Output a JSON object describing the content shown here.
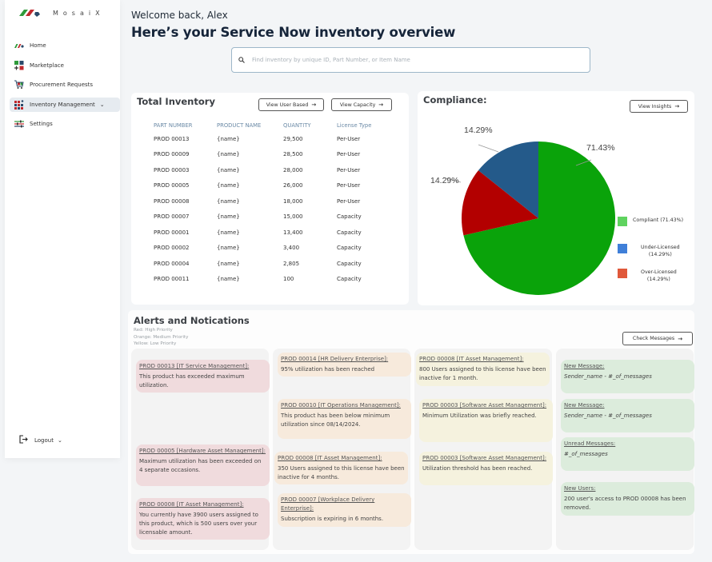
{
  "app": {
    "name": "MosaiX"
  },
  "sidebar": {
    "items": [
      {
        "label": "Home",
        "icon": "home-icon",
        "active": false
      },
      {
        "label": "Marketplace",
        "icon": "marketplace-icon",
        "active": false
      },
      {
        "label": "Procurement Requests",
        "icon": "procurement-icon",
        "active": false
      },
      {
        "label": "Inventory Management",
        "icon": "inventory-icon",
        "active": true,
        "expandable": true
      },
      {
        "label": "Settings",
        "icon": "settings-sliders-icon",
        "active": false
      }
    ],
    "logout": {
      "label": "Logout",
      "icon": "logout-icon"
    }
  },
  "header": {
    "welcome": "Welcome back, Alex",
    "title": "Here’s your Service Now inventory overview"
  },
  "search": {
    "placeholder": "Find inventory by unique ID, Part Number, or Item Name",
    "value": ""
  },
  "inventory": {
    "title": "Total Inventory",
    "buttons": {
      "user_based": "View User Based",
      "capacity": "View Capacity"
    },
    "columns": [
      "PART NUMBER",
      "PRODUCT NAME",
      "QUANTITY",
      "License Type"
    ],
    "rows": [
      [
        "PROD 00013",
        "{name}",
        "29,500",
        "Per-User"
      ],
      [
        "PROD 00009",
        "{name}",
        "28,500",
        "Per-User"
      ],
      [
        "PROD 00003",
        "{name}",
        "28,000",
        "Per-User"
      ],
      [
        "PROD 00005",
        "{name}",
        "26,000",
        "Per-User"
      ],
      [
        "PROD 00008",
        "{name}",
        "18,000",
        "Per-User"
      ],
      [
        "PROD 00007",
        "{name}",
        "15,000",
        "Capacity"
      ],
      [
        "PROD 00001",
        "{name}",
        "13,400",
        "Capacity"
      ],
      [
        "PROD 00002",
        "{name}",
        "3,400",
        "Capacity"
      ],
      [
        "PROD 00004",
        "{name}",
        "2,805",
        "Capacity"
      ],
      [
        "PROD 00011",
        "{name}",
        "100",
        "Capacity"
      ]
    ]
  },
  "compliance": {
    "title": "Compliance:",
    "button": "View Insights"
  },
  "chart_data": {
    "type": "pie",
    "title": "Compliance:",
    "slices": [
      {
        "name": "Compliant",
        "value": 71.43,
        "label": "71.43%",
        "color": "#0aa30a",
        "legend_color": "#5fd35f",
        "legend_label": "Compliant (71.43%)"
      },
      {
        "name": "Over-Licensed",
        "value": 14.29,
        "label": "14.29%",
        "color": "#b30000",
        "legend_color": "#e0583a",
        "legend_label": "Over-Licensed (14.29%)"
      },
      {
        "name": "Under-Licensed",
        "value": 14.29,
        "label": "14.29%",
        "color": "#245a8a",
        "legend_color": "#3f7fd8",
        "legend_label": "Under-Licensed (14.29%)"
      }
    ],
    "legend_order": [
      "Compliant",
      "Under-Licensed",
      "Over-Licensed"
    ],
    "legend_placement": "right",
    "start_angle_deg": 0,
    "direction": "clockwise"
  },
  "alerts": {
    "title": "Alerts and Notications",
    "priority_legend": [
      "Red: High Priority",
      "Orange: Medium Priority",
      "Yellow: Low Priority"
    ],
    "check_messages": "Check Messages",
    "columns": [
      {
        "priority": "red",
        "items": [
          {
            "title": "PROD 00013 [IT Service Management]:",
            "body": "This product has exceeded maximum utilization."
          },
          {
            "title": "PROD 00005 [Hardware Asset Management]:",
            "body": "Maximum utilization has been exceeded on 4 separate occasions."
          },
          {
            "title": "PROD 00008 [IT Asset Management]:",
            "body": "You currently have 3900 users assigned to this product, which is 500 users over your licensable amount."
          }
        ]
      },
      {
        "priority": "orange",
        "items": [
          {
            "title": "PROD 00014 [HR Delivery Enterprise]:",
            "body": "95% utilization has been reached"
          },
          {
            "title": "PROD 00010 [IT Operations Management]:",
            "body": "This product has been below minimum utilization since 08/14/2024."
          },
          {
            "title": "PROD 00008 [IT Asset Management]:",
            "body": "350 Users assigned to this license have been inactive for 4 months."
          },
          {
            "title": "PROD 00007 [Workplace Delivery Enterprise]:",
            "body": "Subscription is expiring in 6 months."
          }
        ]
      },
      {
        "priority": "yellow",
        "items": [
          {
            "title": "PROD 00008 [IT Asset Management]:",
            "body": "800 Users assigned to this license have been inactive for 1 month."
          },
          {
            "title": "PROD 00003 [Software Asset Management]:",
            "body": "Minimum Utilization was briefly reached."
          },
          {
            "title": "PROD 00003 [Software Asset Management]:",
            "body": "Utilization threshold has been reached."
          }
        ]
      },
      {
        "priority": "green",
        "items": [
          {
            "title": "New Message:",
            "body": "Sender_name - #_of_messages",
            "italic": true
          },
          {
            "title": "New Message:",
            "body": "Sender_name - #_of_messages",
            "italic": true
          },
          {
            "title": "Unread Messages:",
            "body": "#_of_messages",
            "italic": true
          },
          {
            "title": "New Users:",
            "body": "200 user's access to PROD 00008 has been removed.",
            "italic": false
          }
        ]
      }
    ]
  }
}
